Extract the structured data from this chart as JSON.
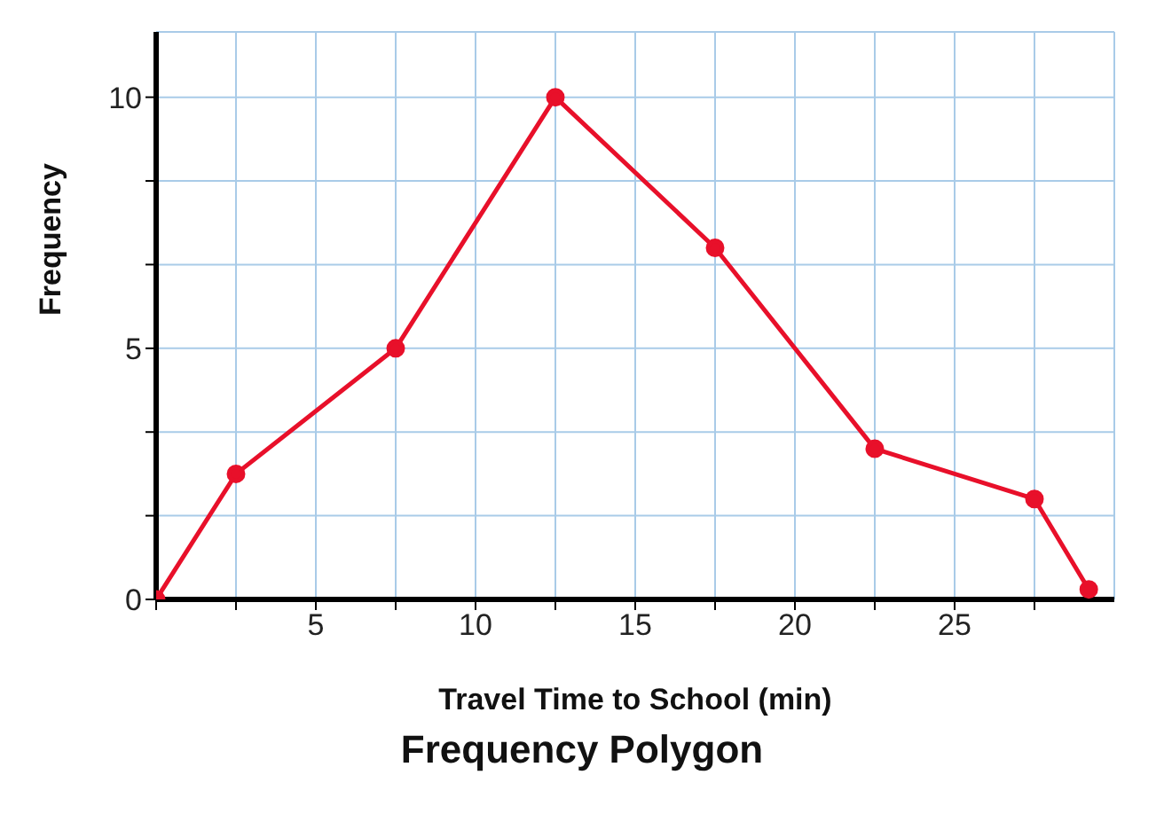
{
  "chart_data": {
    "type": "line",
    "title": "Frequency Polygon",
    "xlabel": "Travel Time to School (min)",
    "ylabel": "Frequency",
    "x": [
      0,
      2.5,
      7.5,
      12.5,
      17.5,
      22.5,
      27.5,
      29.2
    ],
    "series": [
      {
        "color": "#e8102a",
        "values": [
          0,
          2.5,
          5,
          10,
          7,
          3,
          2,
          0.2
        ]
      }
    ],
    "xlim": [
      0,
      30
    ],
    "ylim": [
      0,
      11.3
    ],
    "xticks": [
      {
        "value": 0,
        "label": null
      },
      {
        "value": 2.5,
        "label": null
      },
      5,
      {
        "value": 7.5,
        "label": null
      },
      10,
      {
        "value": 12.5,
        "label": null
      },
      15,
      {
        "value": 17.5,
        "label": null
      },
      20,
      {
        "value": 22.5,
        "label": null
      },
      25,
      {
        "value": 27.5,
        "label": null
      }
    ],
    "yticks": [
      0,
      {
        "value": 1.667,
        "label": null
      },
      {
        "value": 3.333,
        "label": null
      },
      5,
      {
        "value": 6.667,
        "label": null
      },
      {
        "value": 8.333,
        "label": null
      },
      10
    ],
    "grid": true,
    "marker": "circle",
    "line_style": "solid",
    "legend": false
  }
}
